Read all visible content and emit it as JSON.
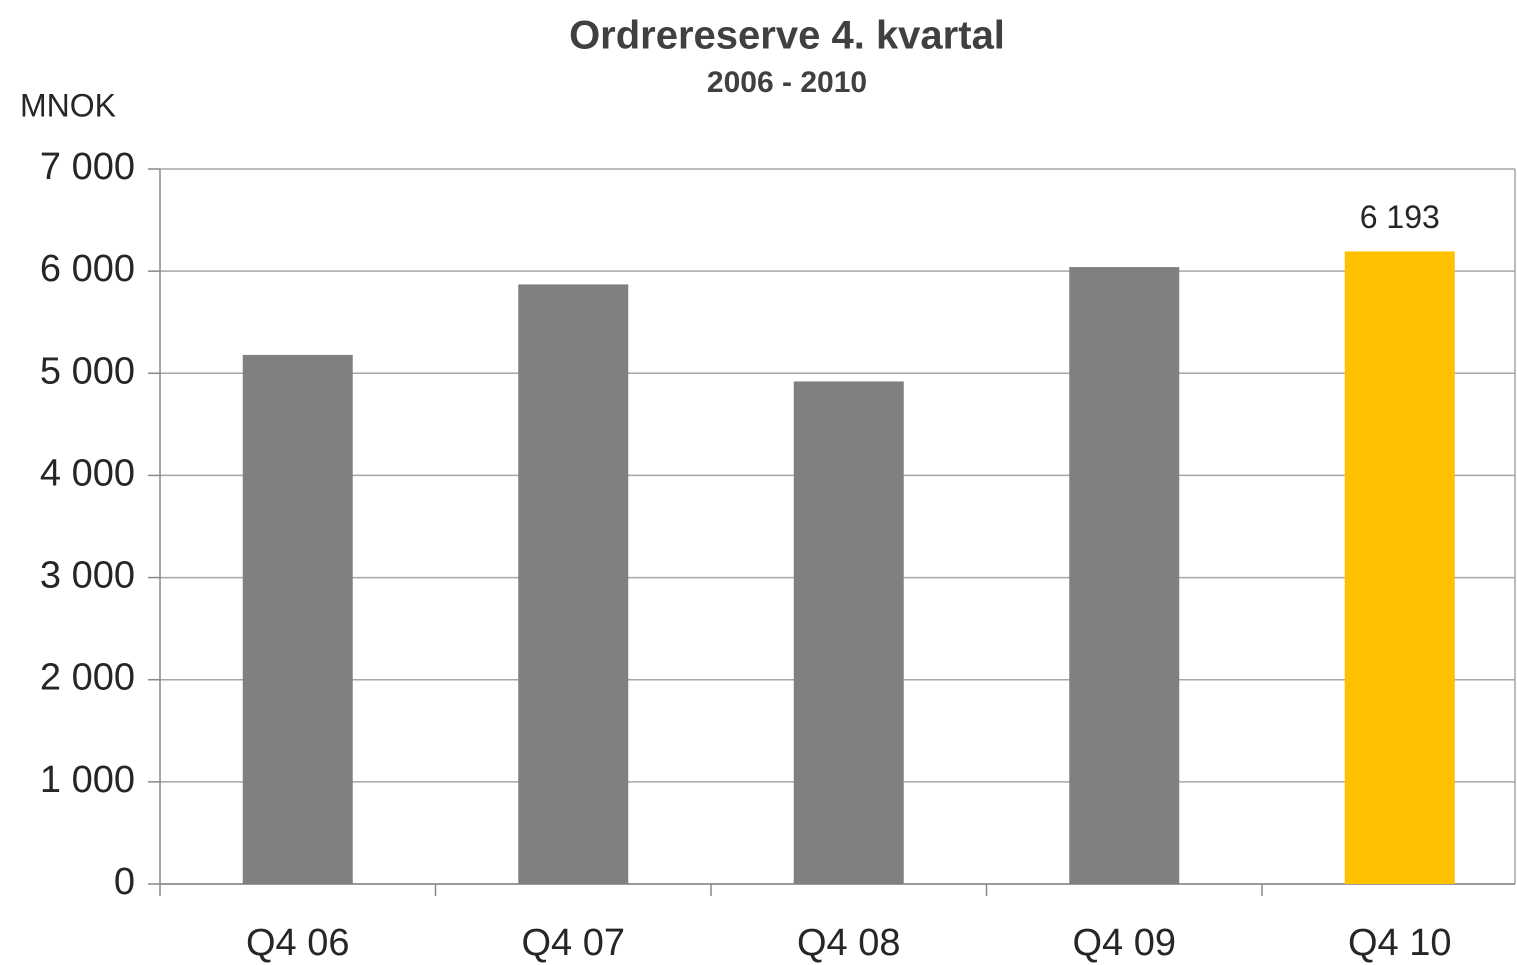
{
  "chart_data": {
    "type": "bar",
    "title": "Ordrereserve 4. kvartal",
    "subtitle": "2006 - 2010",
    "y_axis_label": "MNOK",
    "categories": [
      "Q4 06",
      "Q4 07",
      "Q4 08",
      "Q4 09",
      "Q4 10"
    ],
    "values": [
      5180,
      5870,
      4920,
      6040,
      6193
    ],
    "value_labels": [
      null,
      null,
      null,
      null,
      "6 193"
    ],
    "colors": [
      "#808080",
      "#808080",
      "#808080",
      "#808080",
      "#ffc000"
    ],
    "ylim": [
      0,
      7000
    ],
    "yticks": [
      0,
      {
        "value": 1000,
        "label": "1 000"
      },
      {
        "value": 2000,
        "label": "2 000"
      },
      {
        "value": 3000,
        "label": "3 000"
      },
      {
        "value": 4000,
        "label": "4 000"
      },
      {
        "value": 5000,
        "label": "5 000"
      },
      {
        "value": 6000,
        "label": "6 000"
      },
      {
        "value": 7000,
        "label": "7 000"
      }
    ],
    "grid": true
  }
}
